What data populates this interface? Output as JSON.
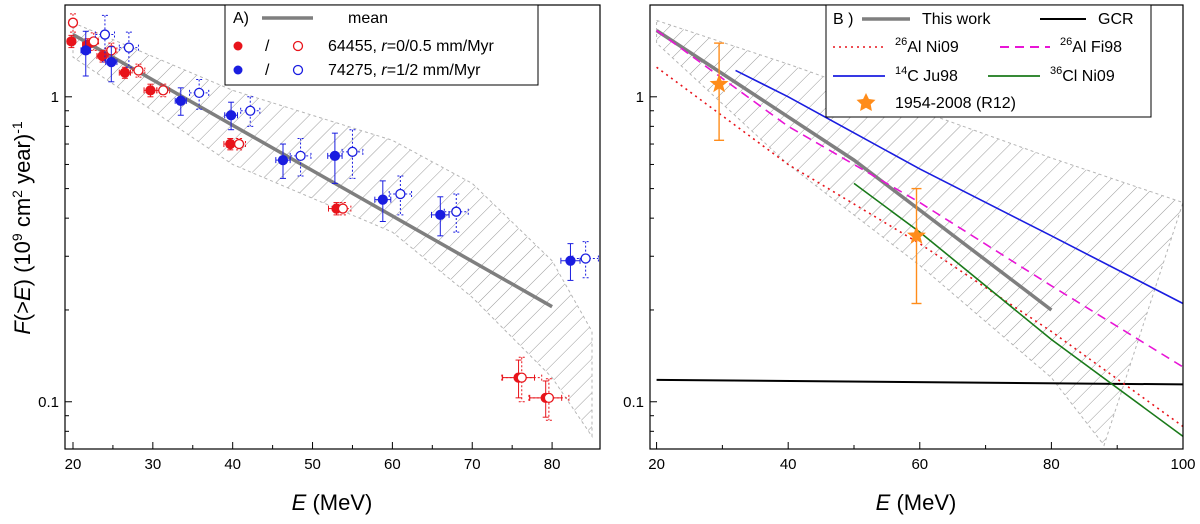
{
  "chart_data": [
    {
      "type": "scatter",
      "panel_label": "A)",
      "ylabel_parts": {
        "f": "F",
        "arg": "(>",
        "e": "E",
        "close": ")",
        "unit_open": " (10",
        "exp9": "9",
        "cm": " cm",
        "exp2": "2",
        "year": " year)",
        "expm1": "-1"
      },
      "xlabel_parts": {
        "e": "E",
        "unit": " (MeV)"
      },
      "x_ticks": [
        20,
        30,
        40,
        50,
        60,
        70,
        80
      ],
      "x_tick_labels": [
        "20",
        "30",
        "40",
        "50",
        "60",
        "70",
        "80"
      ],
      "y_tick_labels": [
        {
          "value": 1,
          "label": "1"
        },
        {
          "value": 0.1,
          "label": "0.1"
        }
      ],
      "xlim": [
        19,
        86
      ],
      "ylim": [
        0.07,
        2.0
      ],
      "yscale": "log",
      "legend": {
        "mean_label": "mean",
        "slash": "/",
        "s64455": {
          "prefix": "64455, ",
          "r": "r",
          "suffix": "=0/0.5 mm/Myr"
        },
        "s74275": {
          "prefix": "74275, ",
          "r": "r",
          "suffix": "=1/2 mm/Myr"
        }
      },
      "mean_line": {
        "x": [
          20,
          80
        ],
        "y": [
          1.6,
          0.205
        ]
      },
      "band": {
        "upper": [
          [
            20,
            1.75
          ],
          [
            40,
            1.05
          ],
          [
            60,
            0.72
          ],
          [
            70,
            0.52
          ],
          [
            80,
            0.29
          ],
          [
            85,
            0.17
          ]
        ],
        "lower": [
          [
            20,
            1.35
          ],
          [
            40,
            0.6
          ],
          [
            60,
            0.36
          ],
          [
            70,
            0.22
          ],
          [
            80,
            0.12
          ],
          [
            85,
            0.077
          ]
        ]
      },
      "series": [
        {
          "name": "64455 r=0",
          "color": "#e8141b",
          "filled": true,
          "points": [
            {
              "x": 19.8,
              "y": 1.52,
              "yerr": [
                0.07,
                0.07
              ],
              "xerr": 0.5
            },
            {
              "x": 21.8,
              "y": 1.48,
              "yerr": [
                0.07,
                0.07
              ],
              "xerr": 0.6
            },
            {
              "x": 23.7,
              "y": 1.36,
              "yerr": [
                0.06,
                0.06
              ],
              "xerr": 0.7
            },
            {
              "x": 26.5,
              "y": 1.2,
              "yerr": [
                0.05,
                0.05
              ],
              "xerr": 0.7
            },
            {
              "x": 29.7,
              "y": 1.05,
              "yerr": [
                0.05,
                0.05
              ],
              "xerr": 0.8
            },
            {
              "x": 39.7,
              "y": 0.7,
              "yerr": [
                0.03,
                0.03
              ],
              "xerr": 0.8
            },
            {
              "x": 53.0,
              "y": 0.43,
              "yerr": [
                0.02,
                0.02
              ],
              "xerr": 1.0
            },
            {
              "x": 75.8,
              "y": 0.12,
              "yerr": [
                0.017,
                0.017
              ],
              "xerr": 2.0
            },
            {
              "x": 79.2,
              "y": 0.103,
              "yerr": [
                0.014,
                0.014
              ],
              "xerr": 2.0
            }
          ]
        },
        {
          "name": "64455 r=0.5",
          "color": "#e8141b",
          "filled": false,
          "points": [
            {
              "x": 20.0,
              "y": 1.75,
              "yerr": [
                0.12,
                0.12
              ],
              "xerr": 0.5
            },
            {
              "x": 22.6,
              "y": 1.52,
              "yerr": [
                0.1,
                0.1
              ],
              "xerr": 0.6
            },
            {
              "x": 24.8,
              "y": 1.42,
              "yerr": [
                0.08,
                0.08
              ],
              "xerr": 0.7
            },
            {
              "x": 28.2,
              "y": 1.22,
              "yerr": [
                0.06,
                0.06
              ],
              "xerr": 0.8
            },
            {
              "x": 31.3,
              "y": 1.05,
              "yerr": [
                0.05,
                0.05
              ],
              "xerr": 0.8
            },
            {
              "x": 40.8,
              "y": 0.7,
              "yerr": [
                0.03,
                0.03
              ],
              "xerr": 0.8
            },
            {
              "x": 53.8,
              "y": 0.43,
              "yerr": [
                0.02,
                0.02
              ],
              "xerr": 1.0
            },
            {
              "x": 76.2,
              "y": 0.12,
              "yerr": [
                0.02,
                0.02
              ],
              "xerr": 2.5
            },
            {
              "x": 79.6,
              "y": 0.103,
              "yerr": [
                0.016,
                0.016
              ],
              "xerr": 2.5
            }
          ]
        },
        {
          "name": "74275 r=1",
          "color": "#1a1de0",
          "filled": true,
          "points": [
            {
              "x": 21.6,
              "y": 1.42,
              "yerr": [
                0.25,
                0.22
              ],
              "xerr": 0.6
            },
            {
              "x": 24.8,
              "y": 1.3,
              "yerr": [
                0.18,
                0.16
              ],
              "xerr": 0.7
            },
            {
              "x": 33.5,
              "y": 0.97,
              "yerr": [
                0.1,
                0.1
              ],
              "xerr": 0.7
            },
            {
              "x": 39.8,
              "y": 0.87,
              "yerr": [
                0.09,
                0.09
              ],
              "xerr": 0.8
            },
            {
              "x": 46.3,
              "y": 0.62,
              "yerr": [
                0.08,
                0.08
              ],
              "xerr": 0.9
            },
            {
              "x": 52.8,
              "y": 0.64,
              "yerr": [
                0.12,
                0.12
              ],
              "xerr": 0.9
            },
            {
              "x": 58.8,
              "y": 0.46,
              "yerr": [
                0.07,
                0.07
              ],
              "xerr": 1.0
            },
            {
              "x": 66.0,
              "y": 0.41,
              "yerr": [
                0.06,
                0.06
              ],
              "xerr": 1.1
            },
            {
              "x": 82.3,
              "y": 0.29,
              "yerr": [
                0.04,
                0.04
              ],
              "xerr": 1.2
            }
          ]
        },
        {
          "name": "74275 r=2",
          "color": "#1a1de0",
          "filled": false,
          "points": [
            {
              "x": 24.0,
              "y": 1.6,
              "yerr": [
                0.3,
                0.25
              ],
              "xerr": 1.2
            },
            {
              "x": 27.0,
              "y": 1.45,
              "yerr": [
                0.2,
                0.18
              ],
              "xerr": 1.2
            },
            {
              "x": 35.8,
              "y": 1.03,
              "yerr": [
                0.12,
                0.11
              ],
              "xerr": 1.2
            },
            {
              "x": 42.2,
              "y": 0.9,
              "yerr": [
                0.1,
                0.1
              ],
              "xerr": 1.2
            },
            {
              "x": 48.5,
              "y": 0.64,
              "yerr": [
                0.09,
                0.09
              ],
              "xerr": 1.3
            },
            {
              "x": 55.0,
              "y": 0.66,
              "yerr": [
                0.12,
                0.12
              ],
              "xerr": 1.3
            },
            {
              "x": 61.0,
              "y": 0.48,
              "yerr": [
                0.07,
                0.07
              ],
              "xerr": 1.4
            },
            {
              "x": 68.0,
              "y": 0.42,
              "yerr": [
                0.06,
                0.06
              ],
              "xerr": 1.5
            },
            {
              "x": 84.2,
              "y": 0.295,
              "yerr": [
                0.04,
                0.04
              ],
              "xerr": 1.6
            }
          ]
        }
      ]
    },
    {
      "type": "line",
      "panel_label": "B )",
      "xlabel_parts": {
        "e": "E",
        "unit": " (MeV)"
      },
      "x_ticks": [
        20,
        40,
        60,
        80,
        100
      ],
      "x_tick_labels": [
        "20",
        "40",
        "60",
        "80",
        "100"
      ],
      "y_tick_labels": [
        {
          "value": 1,
          "label": "1"
        },
        {
          "value": 0.1,
          "label": "0.1"
        }
      ],
      "xlim": [
        19,
        100
      ],
      "ylim": [
        0.07,
        2.0
      ],
      "yscale": "log",
      "band": {
        "upper": [
          [
            20,
            1.78
          ],
          [
            40,
            1.28
          ],
          [
            60,
            0.9
          ],
          [
            80,
            0.63
          ],
          [
            100,
            0.45
          ]
        ],
        "lower": [
          [
            20,
            1.5
          ],
          [
            40,
            0.6
          ],
          [
            60,
            0.28
          ],
          [
            80,
            0.12
          ],
          [
            88,
            0.072
          ]
        ]
      },
      "legend": {
        "this_work": "This work",
        "gcr": "GCR",
        "al_ni09": {
          "iso": "26",
          "rest": "Al Ni09"
        },
        "al_fi98": {
          "iso": "26",
          "rest": "Al Fi98"
        },
        "c_ju98": {
          "iso": "14",
          "rest": "C Ju98"
        },
        "cl_ni09": {
          "iso": "36",
          "rest": "Cl Ni09"
        },
        "r12": "1954-2008 (R12)"
      },
      "series": [
        {
          "name": "This work",
          "color": "#7f7f7f",
          "dash": "",
          "x": [
            20,
            50,
            80
          ],
          "y": [
            1.65,
            0.62,
            0.2
          ]
        },
        {
          "name": "GCR",
          "color": "#000000",
          "dash": "",
          "x": [
            20,
            100
          ],
          "y": [
            0.118,
            0.114
          ]
        },
        {
          "name": "26Al Ni09",
          "color": "#e8141b",
          "dash": "2,4",
          "x": [
            20,
            40,
            60,
            80,
            100
          ],
          "y": [
            1.25,
            0.6,
            0.33,
            0.17,
            0.083
          ]
        },
        {
          "name": "26Al Fi98",
          "color": "#e815d6",
          "dash": "9,6",
          "x": [
            20,
            40,
            60,
            80,
            100
          ],
          "y": [
            1.65,
            0.8,
            0.45,
            0.24,
            0.13
          ]
        },
        {
          "name": "14C Ju98",
          "color": "#1a1de0",
          "dash": "",
          "x": [
            32,
            40,
            60,
            80,
            100
          ],
          "y": [
            1.22,
            1.0,
            0.58,
            0.35,
            0.21
          ]
        },
        {
          "name": "36Cl Ni09",
          "color": "#1a7a1a",
          "dash": "",
          "x": [
            50,
            60,
            80,
            100
          ],
          "y": [
            0.52,
            0.36,
            0.16,
            0.077
          ]
        }
      ],
      "markers": [
        {
          "name": "1954-2008 (R12)",
          "color": "#ff8c1a",
          "points": [
            {
              "x": 29.5,
              "y": 1.1,
              "ylow": 0.72,
              "yhigh": 1.5
            },
            {
              "x": 59.5,
              "y": 0.35,
              "ylow": 0.21,
              "yhigh": 0.5
            }
          ]
        }
      ]
    }
  ]
}
